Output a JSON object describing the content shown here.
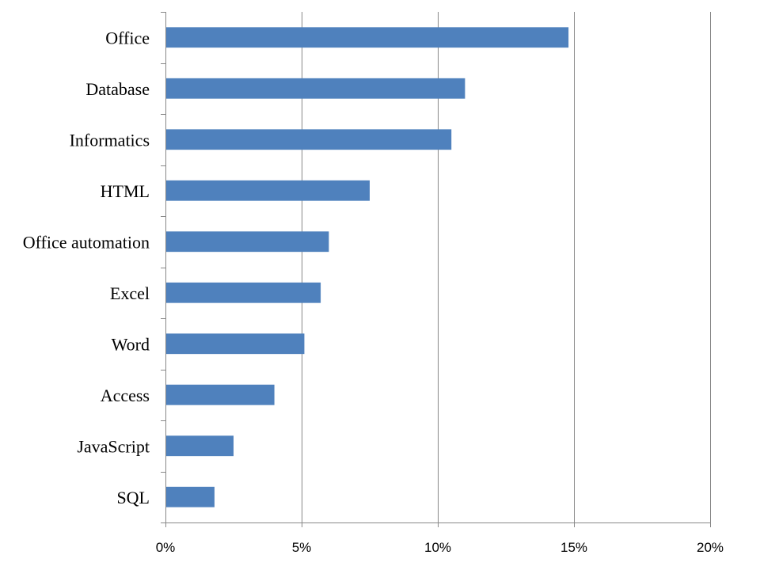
{
  "chart_data": {
    "type": "bar",
    "orientation": "horizontal",
    "title": "",
    "xlabel": "",
    "ylabel": "",
    "categories": [
      "Office",
      "Database",
      "Informatics",
      "HTML",
      "Office automation",
      "Excel",
      "Word",
      "Access",
      "JavaScript",
      "SQL"
    ],
    "values": [
      14.8,
      11.0,
      10.5,
      7.5,
      6.0,
      5.7,
      5.1,
      4.0,
      2.5,
      1.8
    ],
    "xlim": [
      0,
      20
    ],
    "xticks": [
      0,
      5,
      10,
      15,
      20
    ],
    "xtick_labels": [
      "0%",
      "5%",
      "10%",
      "15%",
      "20%"
    ],
    "grid": "vertical",
    "legend": "none",
    "bar_color": "#4f81bd"
  }
}
